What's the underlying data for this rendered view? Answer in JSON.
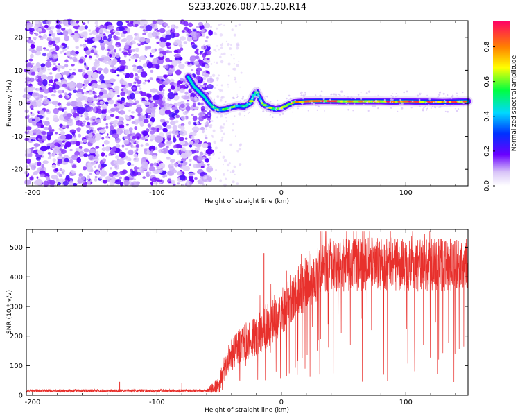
{
  "chart_data": [
    {
      "type": "heatmap",
      "title": "S233.2026.087.15.20.R14",
      "xlabel": "Height of straight line (km)",
      "ylabel": "Frequency (Hz)",
      "xlim": [
        -205,
        150
      ],
      "ylim": [
        -25,
        25
      ],
      "xticks": [
        -200,
        -100,
        0,
        100
      ],
      "yticks": [
        -20,
        -10,
        0,
        10,
        20
      ],
      "colorbar": {
        "label": "Normalized spectral amplitude",
        "range": [
          0,
          0.95
        ],
        "ticks": [
          0.0,
          0.2,
          0.4,
          0.6,
          0.8
        ],
        "tick_labels": [
          "0.0",
          "0.2",
          "0.4",
          "0.6",
          "0.8"
        ],
        "colormap": [
          {
            "v": 0.0,
            "color": "#ffffff"
          },
          {
            "v": 0.08,
            "color": "#d8c4f8"
          },
          {
            "v": 0.18,
            "color": "#6a00ff"
          },
          {
            "v": 0.3,
            "color": "#0030ff"
          },
          {
            "v": 0.42,
            "color": "#00d8ff"
          },
          {
            "v": 0.55,
            "color": "#00ff40"
          },
          {
            "v": 0.68,
            "color": "#ffff00"
          },
          {
            "v": 0.8,
            "color": "#ff8000"
          },
          {
            "v": 0.95,
            "color": "#ff0066"
          }
        ]
      },
      "noise_region": {
        "x_start": -205,
        "x_end": -57,
        "level": "low"
      },
      "ridge": {
        "x": [
          -75,
          -70,
          -66,
          -62,
          -58,
          -54,
          -50,
          -45,
          -40,
          -35,
          -30,
          -25,
          -22,
          -20,
          -18,
          -15,
          -10,
          -5,
          0,
          5,
          10,
          20,
          30,
          40,
          50,
          60,
          70,
          80,
          90,
          100,
          110,
          120,
          130,
          140,
          150
        ],
        "y": [
          8,
          5,
          3.5,
          2,
          0,
          -1.5,
          -2,
          -1.8,
          -1.2,
          -0.8,
          -1,
          0,
          2.5,
          3.5,
          2,
          -0.2,
          -1.2,
          -1.8,
          -1.5,
          -0.5,
          0.3,
          0.6,
          0.7,
          0.7,
          0.6,
          0.6,
          0.6,
          0.6,
          0.5,
          0.6,
          0.5,
          0.5,
          0.4,
          0.5,
          0.6
        ],
        "amplitude": [
          0.3,
          0.35,
          0.35,
          0.4,
          0.4,
          0.45,
          0.45,
          0.4,
          0.4,
          0.45,
          0.45,
          0.4,
          0.45,
          0.5,
          0.45,
          0.4,
          0.45,
          0.5,
          0.55,
          0.55,
          0.6,
          0.65,
          0.65,
          0.7,
          0.7,
          0.7,
          0.7,
          0.7,
          0.7,
          0.7,
          0.7,
          0.7,
          0.7,
          0.7,
          0.7
        ]
      }
    },
    {
      "type": "line",
      "xlabel": "Height of straight line (km)",
      "ylabel": "SNR (10 * v/v)",
      "xlim": [
        -205,
        150
      ],
      "ylim": [
        0,
        560
      ],
      "xticks": [
        -200,
        -100,
        0,
        100
      ],
      "yticks": [
        0,
        100,
        200,
        300,
        400,
        500
      ],
      "color": "#e8302c",
      "envelope": {
        "x": [
          -205,
          -60,
          -50,
          -45,
          -40,
          -30,
          -20,
          -10,
          0,
          10,
          20,
          30,
          40,
          50,
          60,
          80,
          100,
          120,
          140,
          150
        ],
        "mean": [
          15,
          15,
          35,
          100,
          140,
          180,
          200,
          240,
          280,
          330,
          380,
          410,
          430,
          440,
          440,
          445,
          440,
          440,
          440,
          445
        ],
        "spread": [
          5,
          5,
          30,
          45,
          55,
          65,
          70,
          75,
          80,
          85,
          90,
          90,
          90,
          90,
          90,
          90,
          90,
          90,
          90,
          90
        ]
      },
      "spikes": [
        {
          "x": -14,
          "y": 480
        },
        {
          "x": -130,
          "y": 45
        },
        {
          "x": -80,
          "y": 40
        }
      ]
    }
  ]
}
